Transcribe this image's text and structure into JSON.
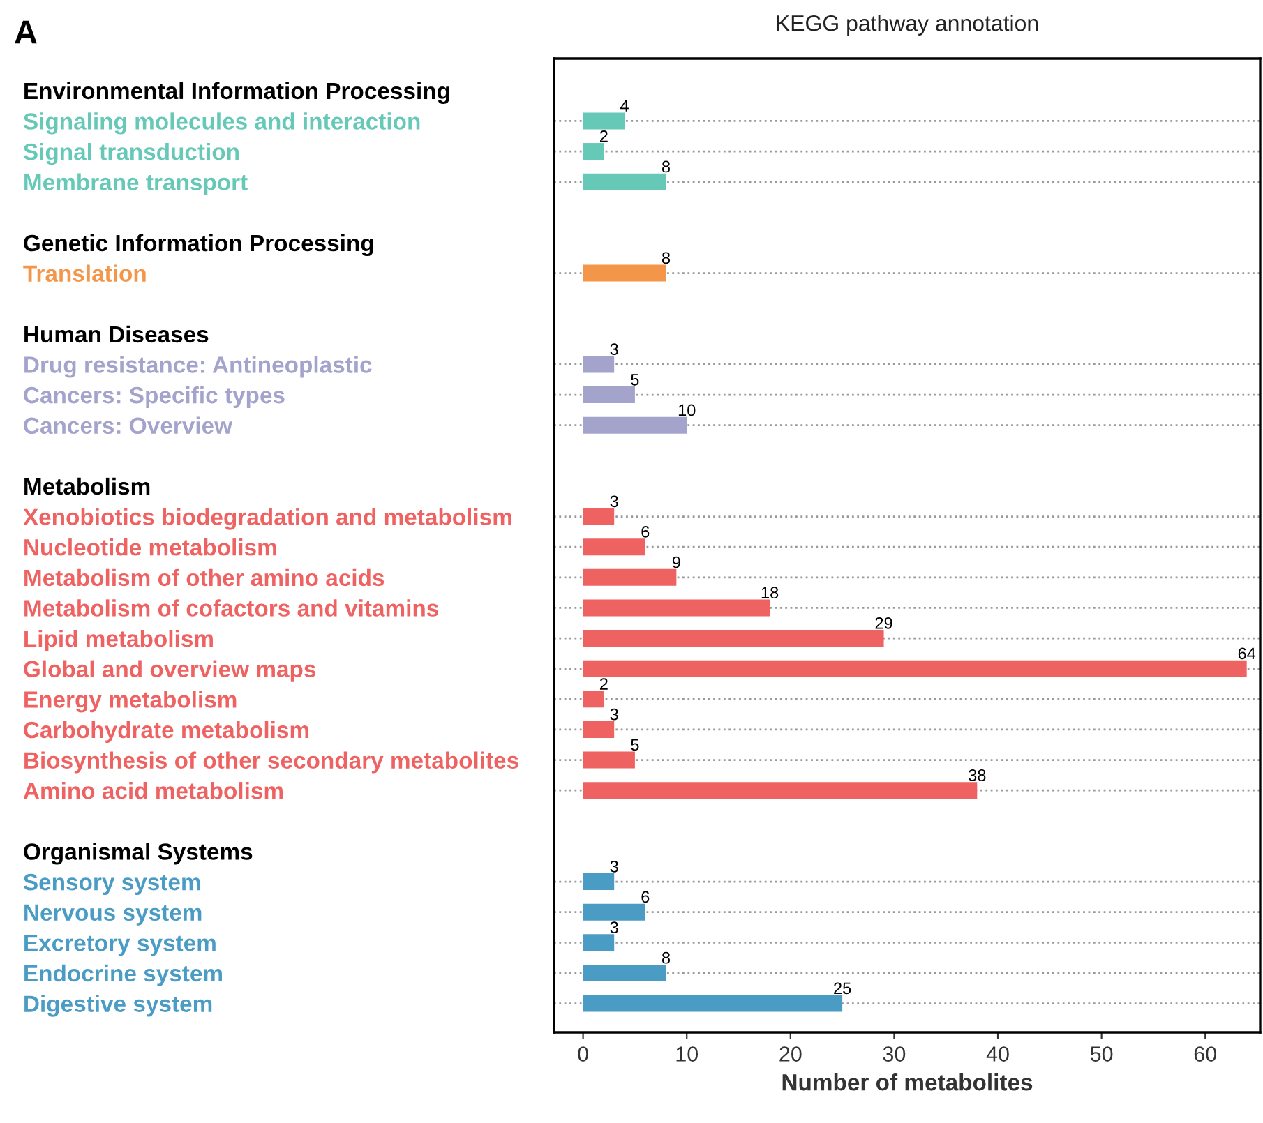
{
  "chart_data": {
    "type": "bar",
    "orientation": "horizontal",
    "title": "KEGG pathway annotation",
    "xlabel": "Number of metabolites",
    "annotations": [
      "A"
    ],
    "categories": [
      "Environmental Information Processing",
      "Signaling molecules and interaction",
      "Signal transduction",
      "Membrane transport",
      null,
      "Genetic Information Processing",
      "Translation",
      null,
      "Human Diseases",
      "Drug resistance: Antineoplastic",
      "Cancers: Specific types",
      "Cancers: Overview",
      null,
      "Metabolism",
      "Xenobiotics biodegradation and metabolism",
      "Nucleotide metabolism",
      "Metabolism of other amino acids",
      "Metabolism of cofactors and vitamins",
      "Lipid metabolism",
      "Global and overview maps",
      "Energy metabolism",
      "Carbohydrate metabolism",
      "Biosynthesis of other secondary metabolites",
      "Amino acid metabolism",
      null,
      "Organismal Systems",
      "Sensory system",
      "Nervous system",
      "Excretory system",
      "Endocrine system",
      "Digestive system"
    ],
    "values": [
      null,
      4,
      2,
      8,
      null,
      null,
      8,
      null,
      null,
      3,
      5,
      10,
      null,
      null,
      3,
      6,
      9,
      18,
      29,
      64,
      2,
      3,
      5,
      38,
      null,
      null,
      3,
      6,
      3,
      8,
      25
    ],
    "colors": [
      "#000000",
      "#66c9b8",
      "#66c9b8",
      "#66c9b8",
      "#000000",
      "#000000",
      "#f4964a",
      "#000000",
      "#000000",
      "#a3a3cc",
      "#a3a3cc",
      "#a3a3cc",
      "#000000",
      "#000000",
      "#ef6262",
      "#ef6262",
      "#ef6262",
      "#ef6262",
      "#ef6262",
      "#ef6262",
      "#ef6262",
      "#ef6262",
      "#ef6262",
      "#ef6262",
      "#000000",
      "#000000",
      "#4a9cc4",
      "#4a9cc4",
      "#4a9cc4",
      "#4a9cc4",
      "#4a9cc4"
    ],
    "xlim": [
      -2.8,
      65.3
    ],
    "xticks": [
      0,
      10,
      20,
      30,
      40,
      50,
      60
    ],
    "data_labels": true,
    "grid": "y",
    "line_style": "dotted"
  }
}
